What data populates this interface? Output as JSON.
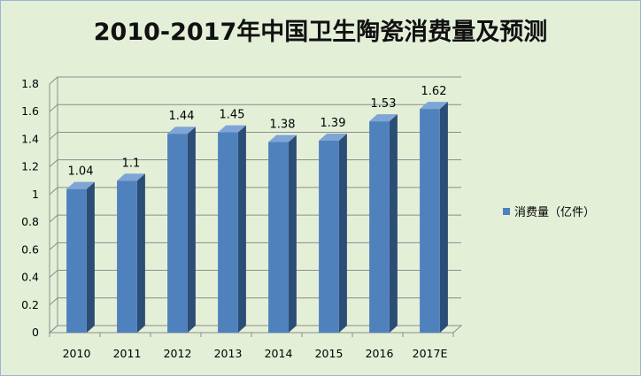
{
  "chart_data": {
    "type": "bar",
    "title": "2010-2017年中国卫生陶瓷消费量及预测",
    "categories": [
      "2010",
      "2011",
      "2012",
      "2013",
      "2014",
      "2015",
      "2016",
      "2017E"
    ],
    "series": [
      {
        "name": "消费量（亿件）",
        "values": [
          1.04,
          1.1,
          1.44,
          1.45,
          1.38,
          1.39,
          1.53,
          1.62
        ]
      }
    ],
    "data_labels": [
      "1.04",
      "1.1",
      "1.44",
      "1.45",
      "1.38",
      "1.39",
      "1.53",
      "1.62"
    ],
    "y_ticks": [
      "0",
      "0.2",
      "0.4",
      "0.6",
      "0.8",
      "1",
      "1.2",
      "1.4",
      "1.6",
      "1.8"
    ],
    "ylim": [
      0,
      1.8
    ],
    "grid": true,
    "legend_position": "right",
    "colors": {
      "bar_front": "#4f81bd",
      "bar_side": "#2c4d75",
      "bar_top": "#7ea5d6",
      "plot_bg": "#e4efd8",
      "grid": "#8c8c8c"
    }
  }
}
